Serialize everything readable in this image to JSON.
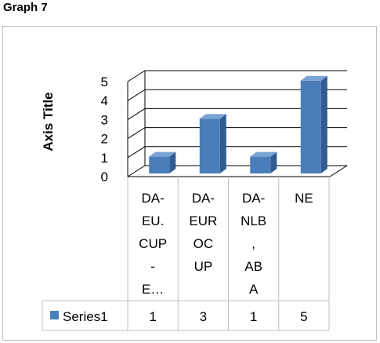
{
  "heading": "Graph 7",
  "chart_data": {
    "type": "bar",
    "title": "",
    "ylabel": "Axis Title",
    "xlabel": "",
    "categories": [
      "DA-EU.CUP-E…",
      "DA-EUROCUP",
      "DA-NLB,ABA",
      "NE"
    ],
    "category_label_lines": [
      [
        "DA-",
        "EU.",
        "CUP",
        "-",
        "E…"
      ],
      [
        "DA-",
        "EUR",
        "OC",
        "UP"
      ],
      [
        "DA-",
        "NLB",
        ",",
        "AB",
        "A"
      ],
      [
        "NE"
      ]
    ],
    "series": [
      {
        "name": "Series1",
        "values": [
          1,
          3,
          1,
          5
        ]
      }
    ],
    "ylim": [
      0,
      5
    ],
    "yticks": [
      0,
      1,
      2,
      3,
      4,
      5
    ],
    "grid": true,
    "bar_color": "#4a7ebb",
    "legend": "data-table"
  }
}
